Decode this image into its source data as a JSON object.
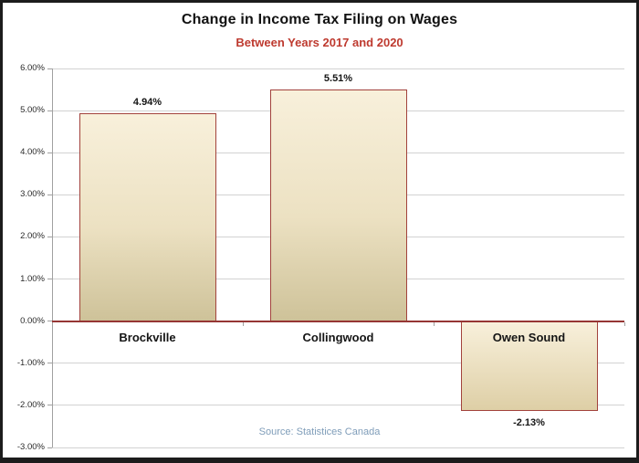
{
  "header": {
    "title": "Change in Income Tax Filing on Wages",
    "subtitle": "Between Years 2017 and 2020"
  },
  "footer": {
    "source": "Source: Statistices Canada"
  },
  "colors": {
    "title_text": "#111111",
    "subtitle_text": "#be3a2f",
    "bar_border": "#a2423c",
    "bar_fill_top": "#f8f0db",
    "bar_fill_mid": "#ece1c2",
    "bar_fill_bottom": "#cec299",
    "bar_fill_bottom_negative": "#decfa6",
    "zero_axis_line": "#963634",
    "gridline": "#d2d2d2",
    "axis_line": "#a0a0a0",
    "tick": "#a0a0a0",
    "axis_tick_text": "#2b2b2b",
    "data_label_text": "#151515",
    "source_text": "#7f9db9"
  },
  "chart_data": {
    "type": "bar",
    "title": "Change in Income Tax Filing on Wages",
    "subtitle": "Between Years 2017 and 2020",
    "categories": [
      "Brockville",
      "Collingwood",
      "Owen Sound"
    ],
    "values": [
      4.94,
      5.51,
      -2.13
    ],
    "value_labels": [
      "4.94%",
      "5.51%",
      "-2.13%"
    ],
    "xlabel": "",
    "ylabel": "",
    "ylim": [
      -3,
      6
    ],
    "ytick_step": 1,
    "y_tick_labels": [
      "6.00%",
      "5.00%",
      "4.00%",
      "3.00%",
      "2.00%",
      "1.00%",
      "0.00%",
      "-1.00%",
      "-2.00%",
      "-3.00%"
    ],
    "grid": true,
    "legend": "none",
    "annotations": [
      "Source: Statistices Canada"
    ]
  }
}
